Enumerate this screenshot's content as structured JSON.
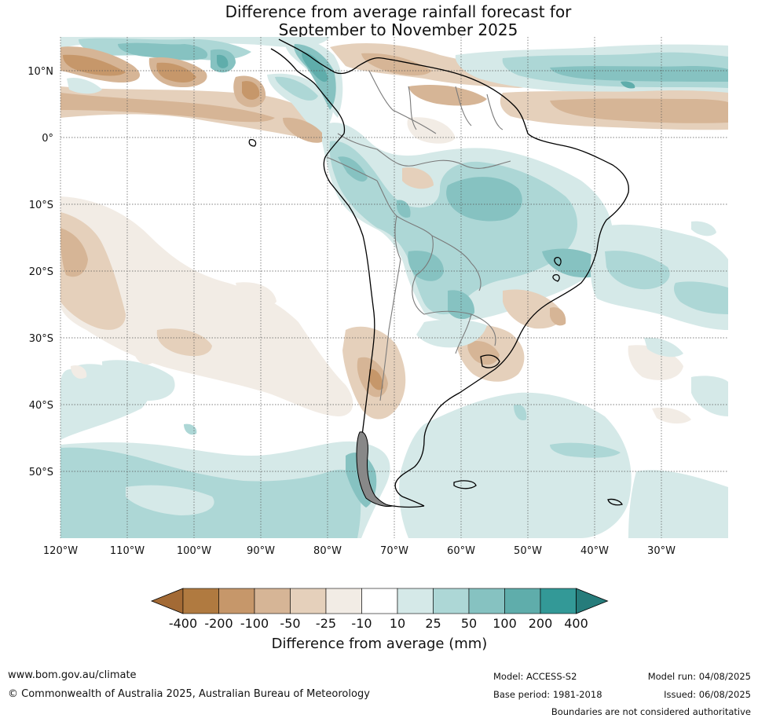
{
  "title": {
    "line1": "Difference from average rainfall forecast for",
    "line2": "September to November 2025"
  },
  "map": {
    "latitude_labels": [
      "10°N",
      "0°",
      "10°S",
      "20°S",
      "30°S",
      "40°S",
      "50°S"
    ],
    "longitude_labels": [
      "120°W",
      "110°W",
      "100°W",
      "90°W",
      "80°W",
      "70°W",
      "60°W",
      "50°W",
      "40°W",
      "30°W"
    ]
  },
  "legend": {
    "tick_labels": [
      "-400",
      "-200",
      "-100",
      "-50",
      "-25",
      "-10",
      "10",
      "25",
      "50",
      "100",
      "200",
      "400"
    ],
    "colors": [
      "#a36a35",
      "#b07a40",
      "#c6976a",
      "#d6b596",
      "#e5d0bb",
      "#f2ece5",
      "#ffffff",
      "#d5e9e8",
      "#add7d6",
      "#86c2c1",
      "#5fadab",
      "#339997",
      "#267c7b"
    ],
    "label": "Difference from average (mm)"
  },
  "footer": {
    "url": "www.bom.gov.au/climate",
    "copyright": "© Commonwealth of Australia 2025, Australian Bureau of Meteorology",
    "model": "Model: ACCESS-S2",
    "base_period": "Base period: 1981-2018",
    "model_run": "Model run: 04/08/2025",
    "issued": "Issued: 06/08/2025",
    "disclaimer": "Boundaries are not considered authoritative"
  }
}
